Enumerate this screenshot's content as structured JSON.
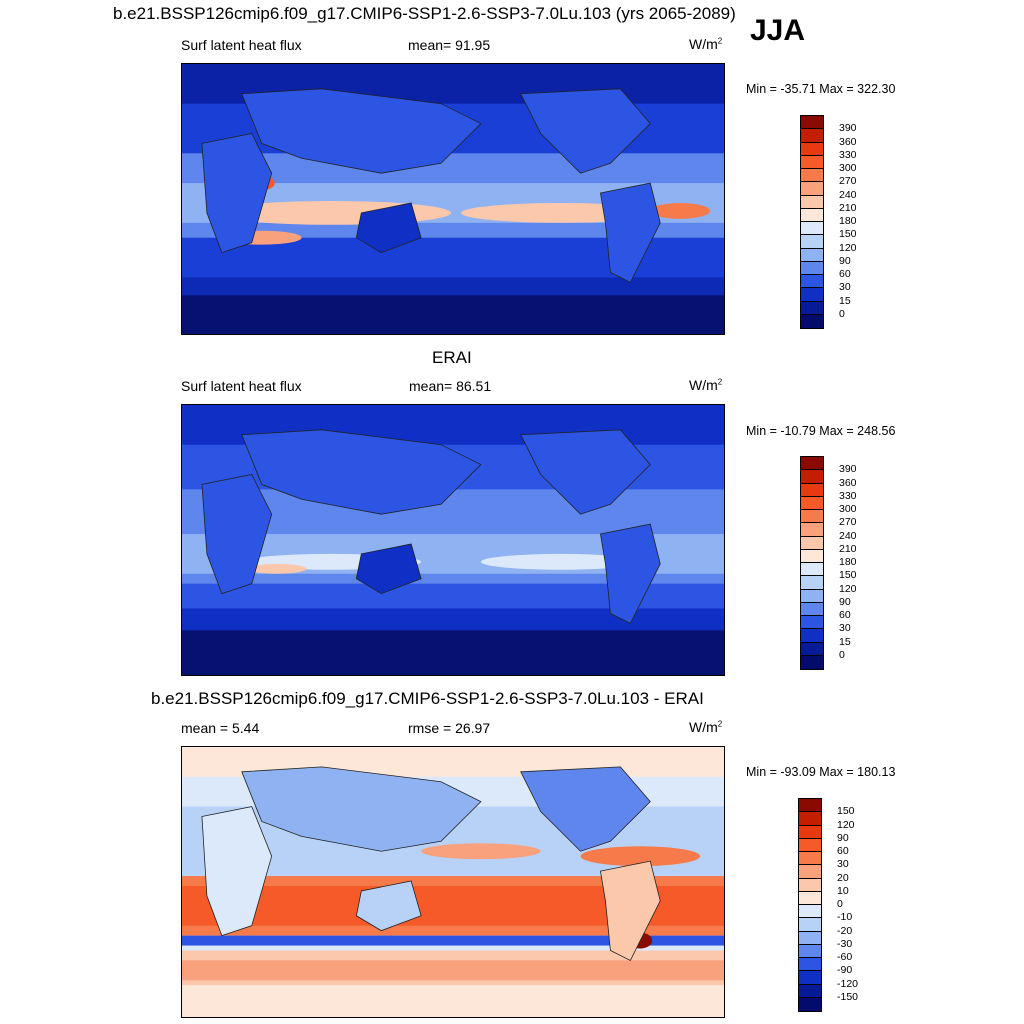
{
  "figure": {
    "season": "JJA",
    "panels": [
      {
        "title": "b.e21.BSSP126cmip6.f09_g17.CMIP6-SSP1-2.6-SSP3-7.0Lu.103 (yrs 2065-2089)",
        "left_label": "Surf latent heat flux",
        "center_label": "mean=  91.95",
        "unit_base": "W/m",
        "unit_sup": "2",
        "minmax": "Min = -35.71 Max = 322.30",
        "colorbar_levels": [
          "390",
          "360",
          "330",
          "300",
          "270",
          "240",
          "210",
          "180",
          "150",
          "120",
          "90",
          "60",
          "30",
          "15",
          "0"
        ],
        "colorbar_colors": [
          "#8b0a00",
          "#c41e00",
          "#e83a10",
          "#f55a28",
          "#f77a4a",
          "#f9a07c",
          "#fbc8ac",
          "#fde7d8",
          "#dbe9fb",
          "#b8d2f7",
          "#8fb2f2",
          "#5f86ec",
          "#2c55e3",
          "#0f2fc5",
          "#071b98",
          "#030c6a"
        ]
      },
      {
        "title": "ERAI",
        "left_label": "Surf latent heat flux",
        "center_label": "mean=  86.51",
        "unit_base": "W/m",
        "unit_sup": "2",
        "minmax": "Min = -10.79 Max = 248.56",
        "colorbar_levels": [
          "390",
          "360",
          "330",
          "300",
          "270",
          "240",
          "210",
          "180",
          "150",
          "120",
          "90",
          "60",
          "30",
          "15",
          "0"
        ],
        "colorbar_colors": [
          "#8b0a00",
          "#c41e00",
          "#e83a10",
          "#f55a28",
          "#f77a4a",
          "#f9a07c",
          "#fbc8ac",
          "#fde7d8",
          "#dbe9fb",
          "#b8d2f7",
          "#8fb2f2",
          "#5f86ec",
          "#2c55e3",
          "#0f2fc5",
          "#071b98",
          "#030c6a"
        ]
      },
      {
        "title": "b.e21.BSSP126cmip6.f09_g17.CMIP6-SSP1-2.6-SSP3-7.0Lu.103 - ERAI",
        "left_label": "mean =   5.44",
        "center_label": "rmse =  26.97",
        "unit_base": "W/m",
        "unit_sup": "2",
        "minmax": "Min = -93.09 Max = 180.13",
        "colorbar_levels": [
          "150",
          "120",
          "90",
          "60",
          "30",
          "20",
          "10",
          "0",
          "-10",
          "-20",
          "-30",
          "-60",
          "-90",
          "-120",
          "-150"
        ],
        "colorbar_colors": [
          "#8b0a00",
          "#c41e00",
          "#e83a10",
          "#f55a28",
          "#f77a4a",
          "#f9a07c",
          "#fbc8ac",
          "#fde7d8",
          "#dbe9fb",
          "#b8d2f7",
          "#8fb2f2",
          "#5f86ec",
          "#2c55e3",
          "#0f2fc5",
          "#071b98",
          "#030c6a"
        ]
      }
    ]
  }
}
